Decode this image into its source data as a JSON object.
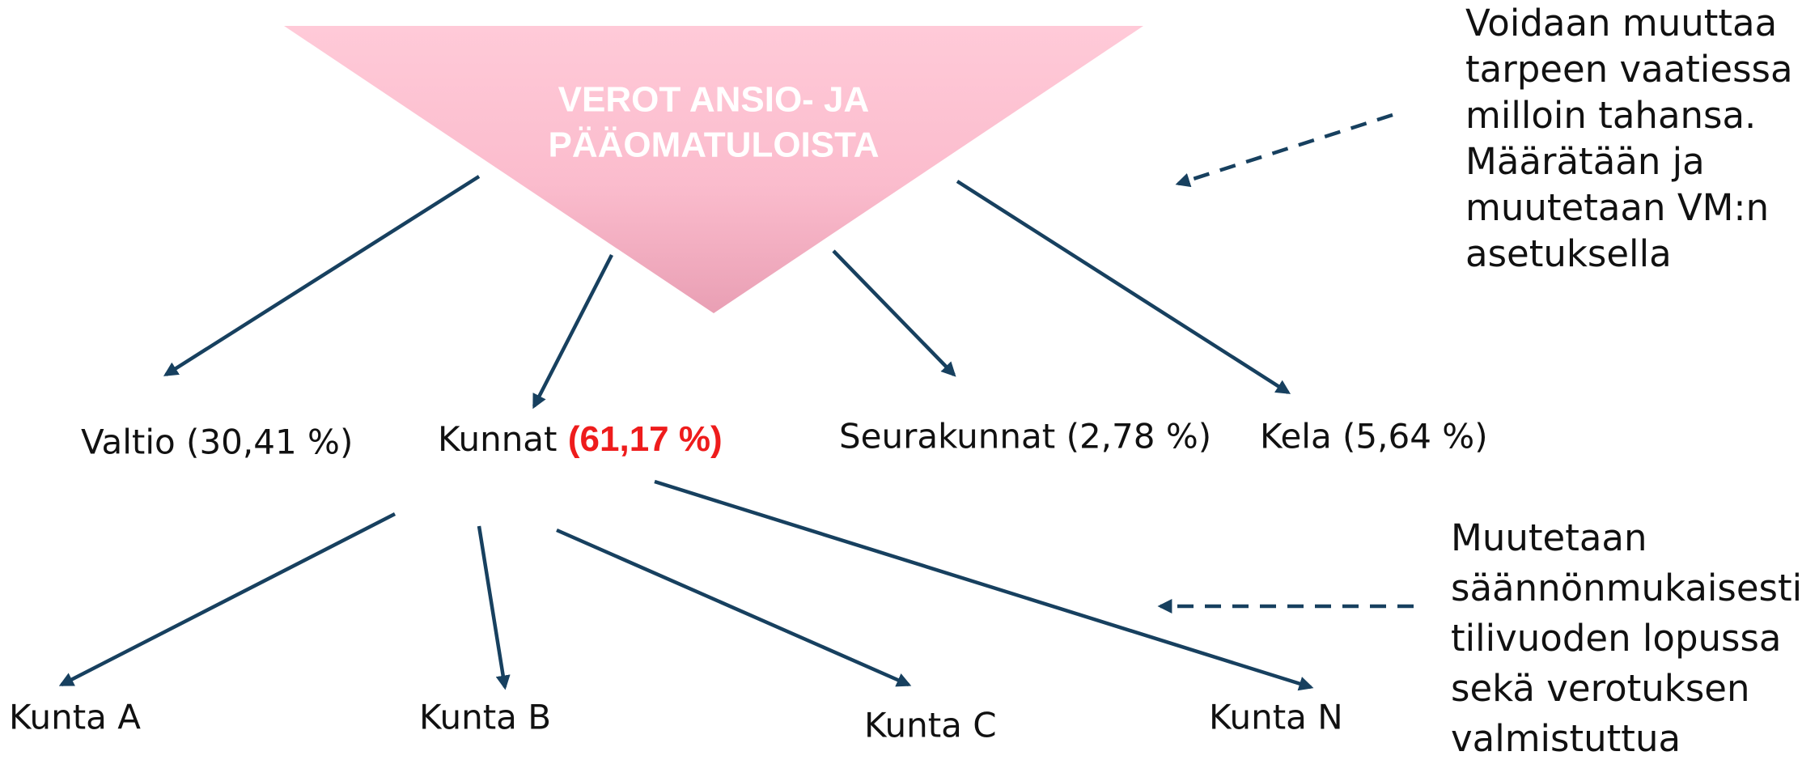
{
  "title": {
    "lines": [
      "VEROT ANSIO- JA",
      "PÄÄOMATULOISTA"
    ]
  },
  "recipients": {
    "valtio": "Valtio (30,41 %)",
    "kunnat": {
      "name": "Kunnat",
      "share": "(61,17 %)"
    },
    "seurakunnat": "Seurakunnat (2,78 %)",
    "kela": "Kela (5,64 %)"
  },
  "municipalities": [
    "Kunta A",
    "Kunta B",
    "Kunta C",
    "Kunta N"
  ],
  "notes": [
    {
      "lines": [
        "Voidaan muuttaa",
        "tarpeen vaatiessa",
        "milloin tahansa.",
        "Määrätään ja",
        "muutetaan VM:n",
        "asetuksella"
      ]
    },
    {
      "lines": [
        "Muutetaan",
        "säännönmukaisesti",
        "tilivuoden lopussa",
        "sekä verotuksen",
        "valmistuttua"
      ]
    }
  ]
}
